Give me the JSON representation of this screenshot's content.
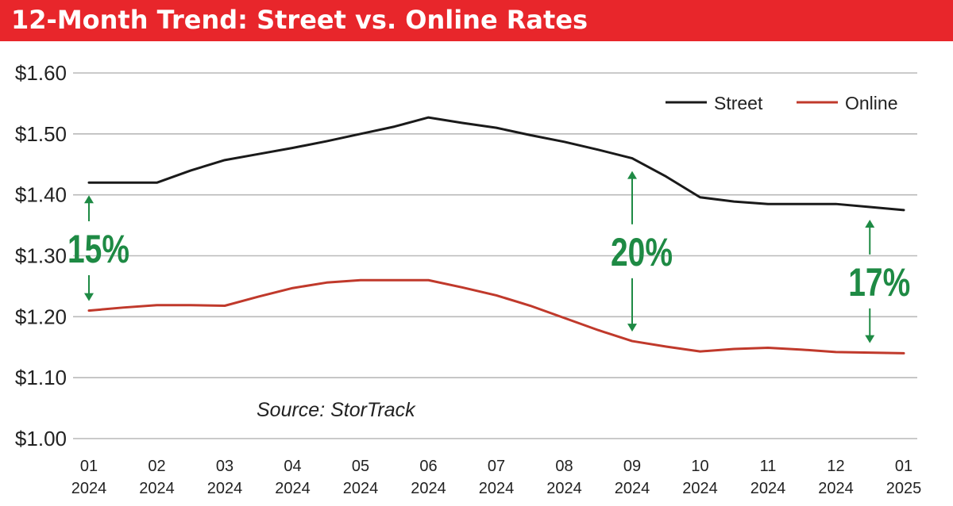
{
  "header": {
    "title": "12-Month Trend: Street vs. Online Rates",
    "background": "#e8262b",
    "text_color": "#ffffff"
  },
  "chart_data": {
    "type": "line",
    "title": "12-Month Trend: Street vs. Online Rates",
    "xlabel": "",
    "ylabel": "",
    "categories": [
      [
        "01",
        "2024"
      ],
      [
        "02",
        "2024"
      ],
      [
        "03",
        "2024"
      ],
      [
        "04",
        "2024"
      ],
      [
        "05",
        "2024"
      ],
      [
        "06",
        "2024"
      ],
      [
        "07",
        "2024"
      ],
      [
        "08",
        "2024"
      ],
      [
        "09",
        "2024"
      ],
      [
        "10",
        "2024"
      ],
      [
        "11",
        "2024"
      ],
      [
        "12",
        "2024"
      ],
      [
        "01",
        "2025"
      ]
    ],
    "series": [
      {
        "name": "Street",
        "color": "#1a1a1a",
        "x": [
          0,
          0.5,
          1,
          1.5,
          2,
          2.5,
          3,
          3.5,
          4,
          4.5,
          5,
          5.5,
          6,
          6.5,
          7,
          7.5,
          8,
          8.5,
          9,
          9.5,
          10,
          10.5,
          11,
          11.5,
          12
        ],
        "values": [
          1.42,
          1.42,
          1.42,
          1.44,
          1.457,
          1.467,
          1.477,
          1.488,
          1.5,
          1.512,
          1.527,
          1.518,
          1.51,
          1.498,
          1.487,
          1.474,
          1.46,
          1.43,
          1.396,
          1.389,
          1.385,
          1.385,
          1.385,
          1.38,
          1.375
        ]
      },
      {
        "name": "Online",
        "color": "#c0392b",
        "x": [
          0,
          0.5,
          1,
          1.5,
          2,
          2.5,
          3,
          3.5,
          4,
          4.5,
          5,
          5.5,
          6,
          6.5,
          7,
          7.5,
          8,
          8.5,
          9,
          9.5,
          10,
          10.5,
          11,
          11.5,
          12
        ],
        "values": [
          1.21,
          1.215,
          1.219,
          1.219,
          1.218,
          1.233,
          1.247,
          1.256,
          1.26,
          1.26,
          1.26,
          1.248,
          1.235,
          1.218,
          1.198,
          1.178,
          1.16,
          1.151,
          1.143,
          1.147,
          1.149,
          1.146,
          1.142,
          1.141,
          1.14
        ]
      }
    ],
    "ylim": [
      1.0,
      1.6
    ],
    "yticks": [
      1.6,
      1.5,
      1.4,
      1.3,
      1.2,
      1.1,
      1.0
    ],
    "ytick_labels": [
      "$1.60",
      "$1.50",
      "$1.40",
      "$1.30",
      "$1.20",
      "$1.10",
      "$1.00"
    ],
    "grid": "horizontal",
    "legend_position": "top-right",
    "legend": [
      {
        "label": "Street",
        "color": "#1a1a1a"
      },
      {
        "label": "Online",
        "color": "#c0392b"
      }
    ],
    "annotations": [
      {
        "text": "15%",
        "x": 0,
        "y_top": 1.42,
        "y_bottom": 1.21,
        "color": "#1e8a44"
      },
      {
        "text": "20%",
        "x": 8,
        "y_top": 1.46,
        "y_bottom": 1.16,
        "color": "#1e8a44"
      },
      {
        "text": "17%",
        "x": 11.5,
        "y_top": 1.38,
        "y_bottom": 1.141,
        "color": "#1e8a44"
      }
    ],
    "source": "Source: StorTrack"
  }
}
